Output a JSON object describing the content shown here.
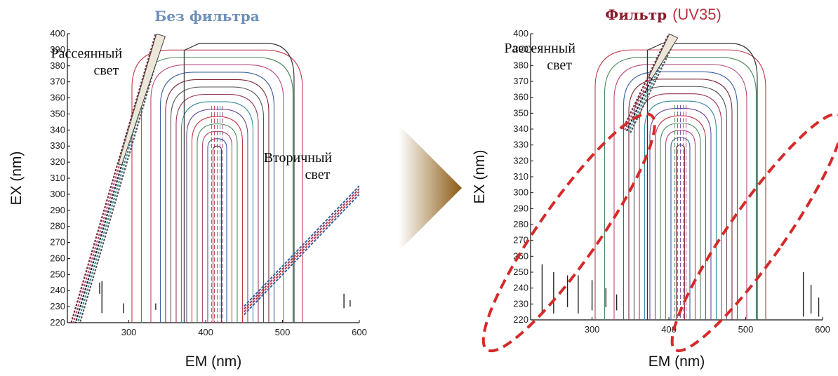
{
  "chart_data": [
    {
      "type": "contour",
      "title": "Без фильтра",
      "title_color": "#6f8fb8",
      "xlabel": "EM (nm)",
      "ylabel": "EX (nm)",
      "xlim": [
        220,
        600
      ],
      "ylim": [
        220,
        400
      ],
      "x_ticks": [
        300,
        400,
        500,
        600
      ],
      "y_ticks": [
        220,
        230,
        240,
        250,
        260,
        270,
        280,
        290,
        300,
        310,
        320,
        330,
        340,
        350,
        360,
        370,
        380,
        390,
        400
      ],
      "annotations": [
        {
          "lines": [
            "Рассеянный",
            "свет"
          ],
          "x": 245,
          "y": 385
        },
        {
          "lines": [
            "Вторичный",
            "свет"
          ],
          "x": 520,
          "y": 320
        }
      ],
      "features": {
        "primary_scatter": {
          "from": [
            225,
            220
          ],
          "to": [
            335,
            400
          ]
        },
        "secondary_scatter": {
          "from": [
            450,
            225
          ],
          "to": [
            600,
            300
          ]
        },
        "peak_em": 415,
        "peak_ex": 340
      }
    },
    {
      "type": "contour",
      "title": "Фильтр",
      "title_suffix": "(UV35)",
      "title_color": "#8b1a2a",
      "title_suffix_color": "#c0303e",
      "xlabel": "EM (nm)",
      "ylabel": "EX (nm)",
      "xlim": [
        220,
        600
      ],
      "ylim": [
        220,
        400
      ],
      "x_ticks": [
        300,
        400,
        500,
        600
      ],
      "y_ticks": [
        220,
        230,
        240,
        250,
        260,
        270,
        280,
        290,
        300,
        310,
        320,
        330,
        340,
        350,
        360,
        370,
        380,
        390,
        400
      ],
      "annotations": [
        {
          "lines": [
            "Рассеянный",
            "свет"
          ],
          "x": 232,
          "y": 388
        }
      ],
      "features": {
        "primary_scatter": {
          "from": [
            340,
            340
          ],
          "to": [
            400,
            400
          ]
        },
        "peak_em": 415,
        "peak_ex": 340,
        "highlight_regions": [
          {
            "cx": 270,
            "cy": 275,
            "rx": 70,
            "ry": 60
          },
          {
            "cx": 515,
            "cy": 275,
            "rx": 65,
            "ry": 60
          }
        ]
      }
    }
  ],
  "colors": {
    "contours": [
      "#7a2a3a",
      "#3b5fa0",
      "#b84a7a",
      "#4a8a5a",
      "#c03848",
      "#6a4a9a",
      "#3a8aa0",
      "#9a3a5a",
      "#555555"
    ],
    "arrow": "#9a6a1a",
    "highlight": "#d42a2a"
  }
}
